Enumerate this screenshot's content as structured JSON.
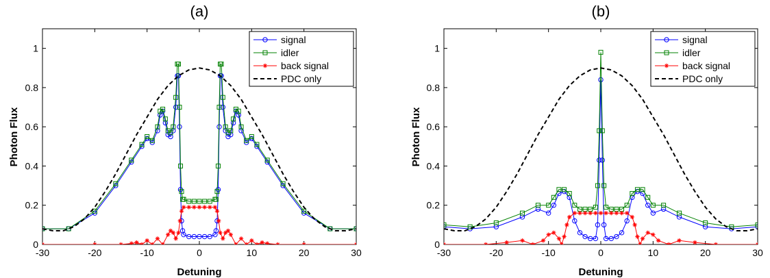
{
  "chart_data": [
    {
      "type": "line",
      "title": "(a)",
      "xlabel": "Detuning",
      "ylabel": "Photon Flux",
      "xlim": [
        -30,
        30
      ],
      "ylim": [
        0,
        1.1
      ],
      "xticks": [
        "-30",
        "-20",
        "-10",
        "0",
        "10",
        "20",
        "30"
      ],
      "yticks": [
        "0",
        "0.2",
        "0.4",
        "0.6",
        "0.8",
        "1"
      ],
      "grid": false,
      "legend_position": "top-right",
      "series": [
        {
          "name": "signal",
          "color": "#0000ff",
          "marker": "circle",
          "style": "solid",
          "x": [
            -30,
            -25,
            -20,
            -16,
            -13,
            -11,
            -10,
            -9,
            -8,
            -7.5,
            -7,
            -6.5,
            -6,
            -5.5,
            -5,
            -4.5,
            -4.2,
            -4,
            -3.8,
            -3.6,
            -3.4,
            -3.2,
            -3,
            -2,
            -1,
            0,
            1,
            2,
            3,
            3.2,
            3.4,
            3.6,
            3.8,
            4,
            4.2,
            4.5,
            5,
            5.5,
            6,
            6.5,
            7,
            7.5,
            8,
            9,
            10,
            11,
            13,
            16,
            20,
            25,
            30
          ],
          "y": [
            0.08,
            0.08,
            0.16,
            0.3,
            0.42,
            0.5,
            0.54,
            0.52,
            0.58,
            0.66,
            0.68,
            0.62,
            0.56,
            0.55,
            0.58,
            0.7,
            0.86,
            0.86,
            0.6,
            0.28,
            0.12,
            0.07,
            0.05,
            0.04,
            0.04,
            0.04,
            0.04,
            0.04,
            0.05,
            0.07,
            0.12,
            0.28,
            0.6,
            0.86,
            0.86,
            0.7,
            0.58,
            0.55,
            0.56,
            0.62,
            0.68,
            0.66,
            0.58,
            0.52,
            0.54,
            0.5,
            0.42,
            0.3,
            0.16,
            0.08,
            0.08
          ]
        },
        {
          "name": "idler",
          "color": "#008000",
          "marker": "square",
          "style": "solid",
          "x": [
            -30,
            -25,
            -20,
            -16,
            -13,
            -11,
            -10,
            -9,
            -8,
            -7.5,
            -7,
            -6.5,
            -6,
            -5.5,
            -5,
            -4.5,
            -4.2,
            -4,
            -3.8,
            -3.6,
            -3.4,
            -3.2,
            -3,
            -2,
            -1,
            0,
            1,
            2,
            3,
            3.2,
            3.4,
            3.6,
            3.8,
            4,
            4.2,
            4.5,
            5,
            5.5,
            6,
            6.5,
            7,
            7.5,
            8,
            9,
            10,
            11,
            13,
            16,
            20,
            25,
            30
          ],
          "y": [
            0.08,
            0.08,
            0.17,
            0.31,
            0.43,
            0.51,
            0.55,
            0.53,
            0.6,
            0.68,
            0.69,
            0.64,
            0.58,
            0.57,
            0.6,
            0.75,
            0.92,
            0.92,
            0.7,
            0.4,
            0.27,
            0.23,
            0.23,
            0.22,
            0.22,
            0.22,
            0.22,
            0.22,
            0.23,
            0.23,
            0.27,
            0.4,
            0.7,
            0.92,
            0.92,
            0.75,
            0.6,
            0.57,
            0.58,
            0.64,
            0.69,
            0.68,
            0.6,
            0.53,
            0.55,
            0.51,
            0.43,
            0.31,
            0.17,
            0.08,
            0.08
          ]
        },
        {
          "name": "back signal",
          "color": "#ff0000",
          "marker": "star",
          "style": "solid",
          "x": [
            -30,
            -20,
            -15,
            -13,
            -12,
            -11,
            -10,
            -9,
            -8,
            -7,
            -6,
            -5.5,
            -5,
            -4.5,
            -4,
            -3.7,
            -3.4,
            -3,
            -2,
            -1,
            0,
            1,
            2,
            3,
            3.4,
            3.7,
            4,
            4.5,
            5,
            5.5,
            6,
            7,
            8,
            9,
            10,
            11,
            12,
            13,
            15,
            20,
            30
          ],
          "y": [
            0.0,
            0.0,
            0.0,
            0.005,
            0.01,
            0.0,
            0.02,
            0.0,
            0.03,
            0.0,
            0.05,
            0.07,
            0.06,
            0.03,
            0.06,
            0.12,
            0.17,
            0.19,
            0.19,
            0.19,
            0.19,
            0.19,
            0.19,
            0.19,
            0.17,
            0.12,
            0.06,
            0.03,
            0.06,
            0.07,
            0.05,
            0.0,
            0.03,
            0.0,
            0.02,
            0.0,
            0.01,
            0.005,
            0.0,
            0.0,
            0.0
          ]
        },
        {
          "name": "PDC only",
          "color": "#000000",
          "marker": "none",
          "style": "dashed",
          "x": [
            -30,
            -28,
            -26,
            -24,
            -22,
            -20,
            -18,
            -16,
            -14,
            -12,
            -10,
            -8,
            -6,
            -4,
            -2,
            0,
            2,
            4,
            6,
            8,
            10,
            12,
            14,
            16,
            18,
            20,
            22,
            24,
            26,
            28,
            30
          ],
          "y": [
            0.08,
            0.07,
            0.07,
            0.09,
            0.13,
            0.19,
            0.27,
            0.36,
            0.46,
            0.56,
            0.65,
            0.74,
            0.81,
            0.86,
            0.89,
            0.9,
            0.89,
            0.86,
            0.81,
            0.74,
            0.65,
            0.56,
            0.46,
            0.36,
            0.27,
            0.19,
            0.13,
            0.09,
            0.07,
            0.07,
            0.08
          ]
        }
      ]
    },
    {
      "type": "line",
      "title": "(b)",
      "xlabel": "Detuning",
      "ylabel": "Photon Flux",
      "xlim": [
        -30,
        30
      ],
      "ylim": [
        0,
        1.1
      ],
      "xticks": [
        "-30",
        "-20",
        "-10",
        "0",
        "10",
        "20",
        "30"
      ],
      "yticks": [
        "0",
        "0.2",
        "0.4",
        "0.6",
        "0.8",
        "1"
      ],
      "grid": false,
      "legend_position": "top-right",
      "series": [
        {
          "name": "signal",
          "color": "#0000ff",
          "marker": "circle",
          "style": "solid",
          "x": [
            -30,
            -25,
            -20,
            -15,
            -12,
            -10,
            -9,
            -8,
            -7,
            -6,
            -5,
            -4,
            -3,
            -2,
            -1,
            -0.6,
            -0.3,
            0,
            0.3,
            0.6,
            1,
            2,
            3,
            4,
            5,
            6,
            7,
            8,
            9,
            10,
            12,
            15,
            20,
            25,
            30
          ],
          "y": [
            0.09,
            0.08,
            0.09,
            0.14,
            0.18,
            0.16,
            0.2,
            0.26,
            0.27,
            0.24,
            0.12,
            0.06,
            0.04,
            0.03,
            0.03,
            0.1,
            0.43,
            0.84,
            0.43,
            0.1,
            0.03,
            0.03,
            0.04,
            0.06,
            0.12,
            0.24,
            0.27,
            0.26,
            0.2,
            0.16,
            0.18,
            0.14,
            0.09,
            0.08,
            0.09
          ]
        },
        {
          "name": "idler",
          "color": "#008000",
          "marker": "square",
          "style": "solid",
          "x": [
            -30,
            -25,
            -20,
            -15,
            -12,
            -10,
            -9,
            -8,
            -7,
            -6,
            -5,
            -4,
            -3,
            -2,
            -1,
            -0.6,
            -0.3,
            0,
            0.3,
            0.6,
            1,
            2,
            3,
            4,
            5,
            6,
            7,
            8,
            9,
            10,
            12,
            15,
            20,
            25,
            30
          ],
          "y": [
            0.1,
            0.09,
            0.11,
            0.16,
            0.2,
            0.2,
            0.24,
            0.28,
            0.28,
            0.26,
            0.2,
            0.18,
            0.18,
            0.18,
            0.19,
            0.3,
            0.58,
            0.98,
            0.58,
            0.3,
            0.19,
            0.18,
            0.18,
            0.18,
            0.2,
            0.26,
            0.28,
            0.28,
            0.24,
            0.2,
            0.2,
            0.16,
            0.11,
            0.09,
            0.1
          ]
        },
        {
          "name": "back signal",
          "color": "#ff0000",
          "marker": "star",
          "style": "solid",
          "x": [
            -30,
            -22,
            -18,
            -15,
            -13,
            -11,
            -10,
            -9,
            -8,
            -7.5,
            -7,
            -6.5,
            -6,
            -5,
            -4,
            -3,
            -2,
            -1,
            0,
            1,
            2,
            3,
            4,
            5,
            6,
            6.5,
            7,
            7.5,
            8,
            9,
            10,
            11,
            13,
            15,
            18,
            22,
            30
          ],
          "y": [
            0.0,
            0.0,
            0.01,
            0.02,
            0.0,
            0.02,
            0.05,
            0.06,
            0.03,
            0.0,
            0.04,
            0.1,
            0.14,
            0.16,
            0.16,
            0.16,
            0.16,
            0.16,
            0.16,
            0.16,
            0.16,
            0.16,
            0.16,
            0.16,
            0.14,
            0.1,
            0.04,
            0.0,
            0.03,
            0.06,
            0.05,
            0.02,
            0.0,
            0.02,
            0.01,
            0.0,
            0.0
          ]
        },
        {
          "name": "PDC only",
          "color": "#000000",
          "marker": "none",
          "style": "dashed",
          "x": [
            -30,
            -28,
            -26,
            -24,
            -22,
            -20,
            -18,
            -16,
            -14,
            -12,
            -10,
            -8,
            -6,
            -4,
            -2,
            0,
            2,
            4,
            6,
            8,
            10,
            12,
            14,
            16,
            18,
            20,
            22,
            24,
            26,
            28,
            30
          ],
          "y": [
            0.08,
            0.07,
            0.07,
            0.09,
            0.13,
            0.19,
            0.27,
            0.36,
            0.46,
            0.56,
            0.65,
            0.74,
            0.81,
            0.86,
            0.89,
            0.9,
            0.89,
            0.86,
            0.81,
            0.74,
            0.65,
            0.56,
            0.46,
            0.36,
            0.27,
            0.19,
            0.13,
            0.09,
            0.07,
            0.07,
            0.08
          ]
        }
      ]
    }
  ]
}
